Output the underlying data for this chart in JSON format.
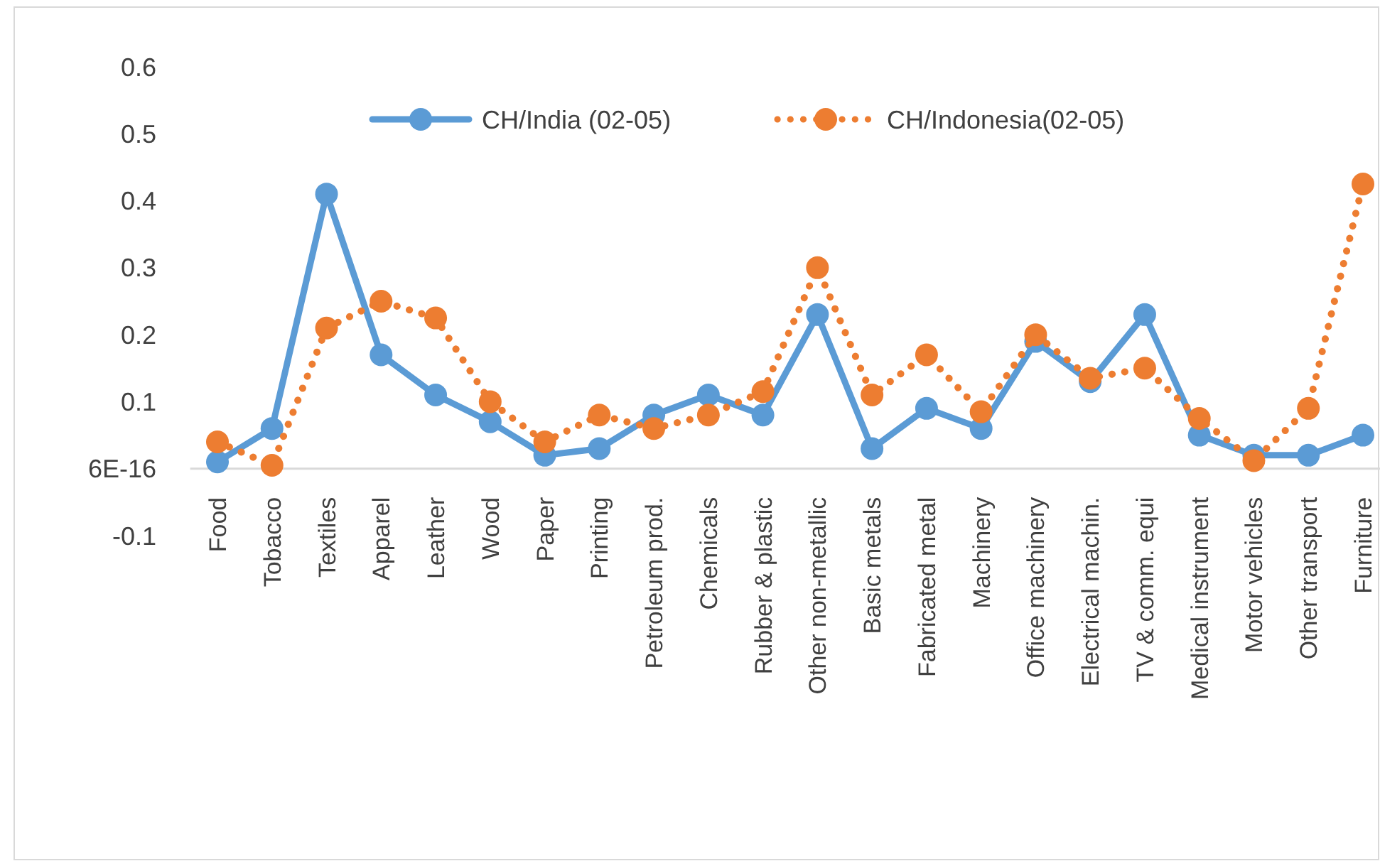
{
  "chart_data": {
    "type": "line",
    "categories": [
      "Food",
      "Tobacco",
      "Textiles",
      "Apparel",
      "Leather",
      "Wood",
      "Paper",
      "Printing",
      "Petroleum prod.",
      "Chemicals",
      "Rubber & plastic",
      "Other non-metallic",
      "Basic metals",
      "Fabricated metal",
      "Machinery",
      "Office machinery",
      "Electrical machin.",
      "TV & comm. equi",
      "Medical instrument",
      "Motor vehicles",
      "Other transport",
      "Furniture"
    ],
    "series": [
      {
        "name": "CH/India (02-05)",
        "color": "#5b9bd5",
        "line_style": "solid",
        "values": [
          0.01,
          0.06,
          0.41,
          0.17,
          0.11,
          0.07,
          0.02,
          0.03,
          0.08,
          0.11,
          0.08,
          0.23,
          0.03,
          0.09,
          0.06,
          0.19,
          0.13,
          0.23,
          0.05,
          0.02,
          0.02,
          0.05
        ]
      },
      {
        "name": "CH/Indonesia(02-05)",
        "color": "#ed7d31",
        "line_style": "dotted",
        "values": [
          0.04,
          0.005,
          0.21,
          0.25,
          0.225,
          0.1,
          0.04,
          0.08,
          0.06,
          0.08,
          0.115,
          0.3,
          0.11,
          0.17,
          0.085,
          0.2,
          0.135,
          0.15,
          0.075,
          0.012,
          0.09,
          0.425
        ]
      }
    ],
    "marker": "circle",
    "ylim": [
      -0.1,
      0.6
    ],
    "yticks": [
      -0.1,
      {
        "value": 0,
        "label": "6E-16"
      },
      0.1,
      0.2,
      0.3,
      0.4,
      0.5,
      0.6
    ],
    "grid": false,
    "legend": "top"
  }
}
